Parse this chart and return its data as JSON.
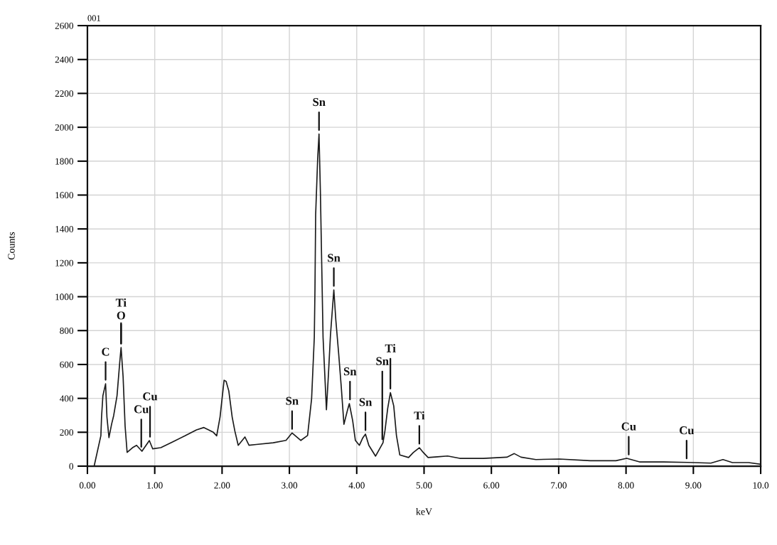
{
  "chart_data": {
    "type": "line",
    "xlabel": "keV",
    "ylabel": "Counts",
    "x": [
      0.1,
      0.2,
      0.21,
      0.23,
      0.27,
      0.29,
      0.32,
      0.36,
      0.39,
      0.44,
      0.48,
      0.5,
      0.53,
      0.56,
      0.59,
      0.67,
      0.73,
      0.81,
      0.92,
      0.97,
      1.09,
      1.27,
      1.45,
      1.62,
      1.73,
      1.87,
      1.92,
      1.97,
      2.03,
      2.06,
      2.1,
      2.15,
      2.19,
      2.24,
      2.34,
      2.4,
      2.51,
      2.76,
      2.95,
      3.04,
      3.17,
      3.27,
      3.33,
      3.37,
      3.38,
      3.39,
      3.42,
      3.44,
      3.46,
      3.48,
      3.5,
      3.55,
      3.58,
      3.61,
      3.64,
      3.66,
      3.69,
      3.73,
      3.77,
      3.81,
      3.86,
      3.89,
      3.94,
      3.98,
      4.04,
      4.09,
      4.13,
      4.18,
      4.28,
      4.33,
      4.39,
      4.42,
      4.46,
      4.5,
      4.55,
      4.59,
      4.64,
      4.77,
      4.84,
      4.93,
      4.99,
      5.06,
      5.2,
      5.35,
      5.53,
      5.88,
      6.23,
      6.34,
      6.44,
      6.66,
      7.01,
      7.47,
      7.85,
      8.01,
      8.2,
      8.56,
      8.91,
      9.26,
      9.44,
      9.58,
      9.82,
      10.0
    ],
    "series": [
      {
        "color": "#1a1a1a",
        "values": [
          0,
          180,
          290,
          416,
          486,
          290,
          168,
          249,
          298,
          416,
          612,
          700,
          528,
          235,
          81,
          109,
          123,
          88,
          151,
          102,
          109,
          144,
          179,
          214,
          228,
          200,
          179,
          290,
          507,
          500,
          444,
          290,
          207,
          123,
          172,
          123,
          128,
          138,
          152,
          196,
          152,
          181,
          398,
          760,
          1049,
          1483,
          1815,
          1960,
          1627,
          1195,
          760,
          333,
          542,
          774,
          933,
          1040,
          861,
          673,
          470,
          247,
          326,
          369,
          268,
          152,
          123,
          167,
          189,
          123,
          59,
          95,
          138,
          210,
          340,
          434,
          355,
          181,
          66,
          51,
          80,
          109,
          80,
          51,
          55,
          60,
          46,
          46,
          53,
          74,
          53,
          39,
          42,
          32,
          32,
          46,
          25,
          25,
          22,
          18,
          39,
          21,
          21,
          11
        ]
      }
    ],
    "xlim": [
      0,
      10
    ],
    "ylim": [
      0,
      2600
    ],
    "xticks": [
      {
        "value": 0,
        "label": "0.00"
      },
      {
        "value": 1,
        "label": "1.00"
      },
      {
        "value": 2,
        "label": "2.00"
      },
      {
        "value": 3,
        "label": "3.00"
      },
      {
        "value": 4,
        "label": "4.00"
      },
      {
        "value": 5,
        "label": "5.00"
      },
      {
        "value": 6,
        "label": "6.00"
      },
      {
        "value": 7,
        "label": "7.00"
      },
      {
        "value": 8,
        "label": "8.00"
      },
      {
        "value": 9,
        "label": "9.00"
      },
      {
        "value": 10,
        "label": "10.0"
      }
    ],
    "yticks": [
      0,
      200,
      400,
      600,
      800,
      1000,
      1200,
      1400,
      1600,
      1800,
      2000,
      2200,
      2400,
      2600
    ],
    "grid": true,
    "line_style": "solid",
    "annotations": [
      "001",
      {
        "text": "C",
        "x": 0.27,
        "y": 486
      },
      {
        "text": "Ti",
        "x": 0.5,
        "y": 700
      },
      {
        "text": "O",
        "x": 0.5,
        "y": 700
      },
      {
        "text": "Cu",
        "x": 0.93,
        "y": 150
      },
      {
        "text": "Cu",
        "x": 0.8,
        "y": 90
      },
      {
        "text": "Sn",
        "x": 3.04,
        "y": 196
      },
      {
        "text": "Sn",
        "x": 3.44,
        "y": 1960
      },
      {
        "text": "Sn",
        "x": 3.66,
        "y": 1040
      },
      {
        "text": "Sn",
        "x": 3.9,
        "y": 370
      },
      {
        "text": "Sn",
        "x": 4.13,
        "y": 189
      },
      {
        "text": "Ti",
        "x": 4.5,
        "y": 434
      },
      {
        "text": "Sn",
        "x": 4.38,
        "y": 135
      },
      {
        "text": "Ti",
        "x": 4.93,
        "y": 109
      },
      {
        "text": "Cu",
        "x": 8.04,
        "y": 45
      },
      {
        "text": "Cu",
        "x": 8.9,
        "y": 22
      }
    ]
  }
}
